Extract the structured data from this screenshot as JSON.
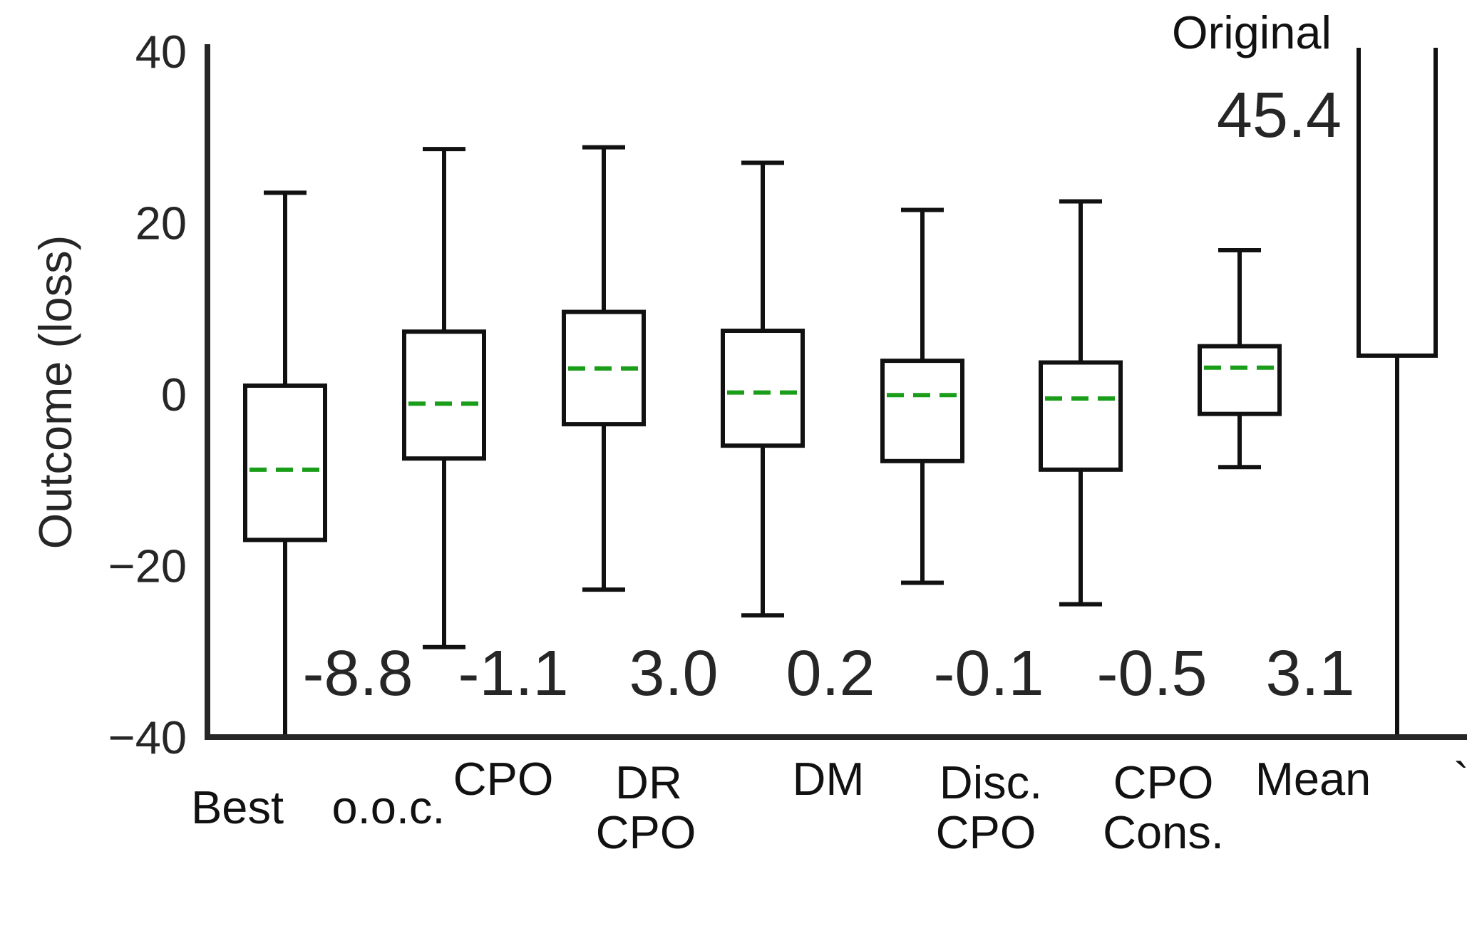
{
  "chart_data": {
    "type": "box",
    "ylabel": "Outcome (loss)",
    "ylim": [
      -40,
      40
    ],
    "yticks": [
      {
        "value": 40,
        "label": "40"
      },
      {
        "value": 20,
        "label": "20"
      },
      {
        "value": 0,
        "label": "0"
      },
      {
        "value": -20,
        "label": "−20"
      },
      {
        "value": -40,
        "label": "−40"
      }
    ],
    "boxes": [
      {
        "label_lines": [
          "Best",
          "o.o.c."
        ],
        "whisker_low": -40,
        "q1": -17,
        "median": -8.8,
        "q3": 1,
        "whisker_high": 23.5,
        "mean_label": "-8.8"
      },
      {
        "label_lines": [
          "CPO"
        ],
        "whisker_low": -29.5,
        "q1": -7.5,
        "median": -1.1,
        "q3": 7.3,
        "whisker_high": 28.6,
        "mean_label": "-1.1"
      },
      {
        "label_lines": [
          "DR",
          "CPO"
        ],
        "whisker_low": -22.8,
        "q1": -3.5,
        "median": 3.0,
        "q3": 9.6,
        "whisker_high": 28.8,
        "mean_label": "3.0"
      },
      {
        "label_lines": [
          "DM"
        ],
        "whisker_low": -25.8,
        "q1": -6,
        "median": 0.2,
        "q3": 7.4,
        "whisker_high": 27,
        "mean_label": "0.2"
      },
      {
        "label_lines": [
          "Disc.",
          "CPO"
        ],
        "whisker_low": -22,
        "q1": -7.8,
        "median": -0.1,
        "q3": 3.9,
        "whisker_high": 21.5,
        "mean_label": "-0.1"
      },
      {
        "label_lines": [
          "CPO",
          "Cons."
        ],
        "whisker_low": -24.5,
        "q1": -8.8,
        "median": -0.5,
        "q3": 3.7,
        "whisker_high": 22.5,
        "mean_label": "-0.5"
      },
      {
        "label_lines": [
          "Mean"
        ],
        "whisker_low": -8.5,
        "q1": -2.3,
        "median": 3.1,
        "q3": 5.6,
        "whisker_high": 16.8,
        "mean_label": "3.1"
      },
      {
        "label_lines": [
          "`"
        ],
        "whisker_low": -40,
        "q1": 4.5,
        "median": null,
        "q3": 40,
        "whisker_high": 40,
        "mean_label": null
      }
    ],
    "annotation": {
      "title": "Original",
      "value": "45.4"
    },
    "median_color": "#1a9e1a",
    "box_color": "#111111",
    "axis_color": "#262626"
  }
}
